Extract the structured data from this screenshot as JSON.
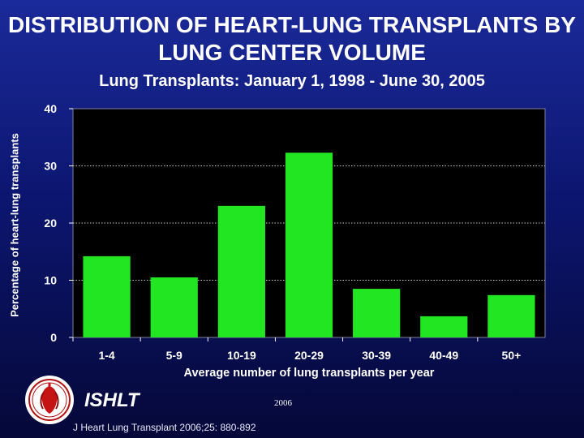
{
  "chart_data": {
    "type": "bar",
    "title": "DISTRIBUTION OF HEART-LUNG TRANSPLANTS BY LUNG CENTER VOLUME",
    "subtitle": "Lung Transplants: January 1, 1998 - June 30, 2005",
    "xlabel": "Average number of lung transplants per year",
    "ylabel": "Percentage of heart-lung transplants",
    "categories": [
      "1-4",
      "5-9",
      "10-19",
      "20-29",
      "30-39",
      "40-49",
      "50+"
    ],
    "values": [
      14.2,
      10.5,
      23.0,
      32.3,
      8.5,
      3.7,
      7.4
    ],
    "ylim": [
      0,
      40
    ],
    "yticks": [
      0,
      10,
      20,
      30,
      40
    ],
    "grid": true,
    "bar_color": "#22e622",
    "plot_background": "#000000"
  },
  "footer": {
    "org": "ISHLT",
    "year": "2006",
    "citation": "J Heart Lung Transplant 2006;25: 880-892",
    "logo_icon": "ishlt-seal-logo"
  }
}
